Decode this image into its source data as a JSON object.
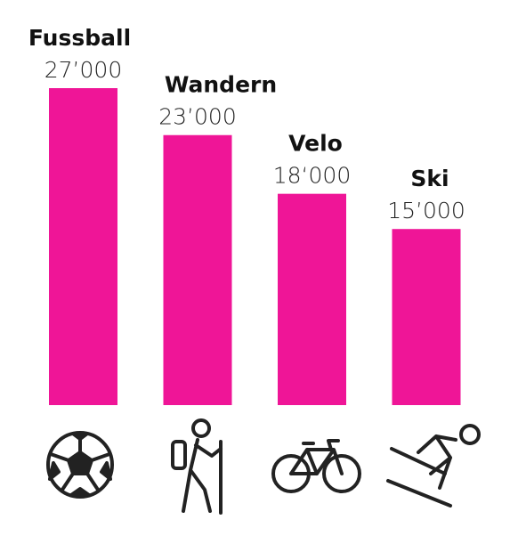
{
  "chart_data": {
    "type": "bar",
    "categories": [
      "Fussball",
      "Wandern",
      "Velo",
      "Ski"
    ],
    "values": [
      27000,
      23000,
      18000,
      15000
    ],
    "value_labels": [
      "27’000",
      "23’000",
      "18‘000",
      "15’000"
    ],
    "color": "#ef1597"
  }
}
